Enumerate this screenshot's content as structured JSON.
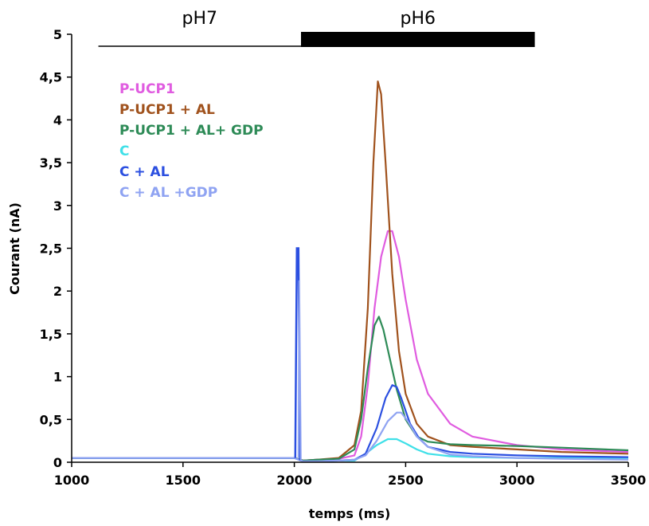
{
  "chart_data": {
    "type": "line",
    "xlabel": "temps (ms)",
    "ylabel": "Courant (nA)",
    "xlim": [
      1000,
      3500
    ],
    "ylim": [
      0,
      5
    ],
    "x_ticks": [
      {
        "value": 1000,
        "label": "1000"
      },
      {
        "value": 1500,
        "label": "1500"
      },
      {
        "value": 2000,
        "label": "2000"
      },
      {
        "value": 2500,
        "label": "2500"
      },
      {
        "value": 3000,
        "label": "3000"
      },
      {
        "value": 3500,
        "label": "3500"
      }
    ],
    "y_ticks": [
      {
        "value": 0,
        "label": "0"
      },
      {
        "value": 0.5,
        "label": "0,5"
      },
      {
        "value": 1,
        "label": "1"
      },
      {
        "value": 1.5,
        "label": "1,5"
      },
      {
        "value": 2,
        "label": "2"
      },
      {
        "value": 2.5,
        "label": "2,5"
      },
      {
        "value": 3,
        "label": "3"
      },
      {
        "value": 3.5,
        "label": "3,5"
      },
      {
        "value": 4,
        "label": "4"
      },
      {
        "value": 4.5,
        "label": "4,5"
      },
      {
        "value": 5,
        "label": "5"
      }
    ],
    "phases": [
      {
        "label": "pH7",
        "x_start": 1120,
        "x_end": 2030,
        "style": "thin"
      },
      {
        "label": "pH6",
        "x_start": 2030,
        "x_end": 3080,
        "style": "thick"
      }
    ],
    "legend_position": "top-left",
    "series": [
      {
        "name": "P-UCP1",
        "color": "#e05ce0",
        "x": [
          1000,
          1800,
          2000,
          2040,
          2100,
          2200,
          2270,
          2300,
          2330,
          2360,
          2390,
          2420,
          2440,
          2470,
          2500,
          2550,
          2600,
          2700,
          2800,
          3000,
          3200,
          3500
        ],
        "y": [
          0.05,
          0.05,
          0.05,
          0.02,
          0.03,
          0.04,
          0.08,
          0.3,
          0.9,
          1.8,
          2.4,
          2.7,
          2.7,
          2.4,
          1.9,
          1.2,
          0.8,
          0.45,
          0.3,
          0.2,
          0.15,
          0.12
        ]
      },
      {
        "name": "P-UCP1 + AL",
        "color": "#a0521d",
        "x": [
          1000,
          1800,
          2000,
          2040,
          2100,
          2200,
          2270,
          2300,
          2330,
          2355,
          2375,
          2390,
          2410,
          2440,
          2470,
          2500,
          2550,
          2600,
          2700,
          2800,
          3000,
          3200,
          3500
        ],
        "y": [
          0.05,
          0.05,
          0.05,
          0.02,
          0.03,
          0.05,
          0.2,
          0.6,
          1.8,
          3.5,
          4.45,
          4.3,
          3.5,
          2.2,
          1.3,
          0.8,
          0.45,
          0.3,
          0.2,
          0.18,
          0.15,
          0.12,
          0.1
        ]
      },
      {
        "name": "P-UCP1 + AL+ GDP",
        "color": "#2e8b57",
        "x": [
          1000,
          1800,
          2000,
          2040,
          2100,
          2200,
          2270,
          2300,
          2330,
          2360,
          2380,
          2400,
          2430,
          2460,
          2500,
          2550,
          2600,
          2700,
          2800,
          3000,
          3200,
          3500
        ],
        "y": [
          0.05,
          0.05,
          0.05,
          0.02,
          0.03,
          0.04,
          0.15,
          0.5,
          1.1,
          1.6,
          1.7,
          1.55,
          1.2,
          0.85,
          0.5,
          0.3,
          0.24,
          0.21,
          0.2,
          0.19,
          0.17,
          0.14
        ]
      },
      {
        "name": "C",
        "color": "#40e0e8",
        "x": [
          1000,
          1800,
          2000,
          2040,
          2100,
          2200,
          2270,
          2320,
          2370,
          2420,
          2460,
          2500,
          2550,
          2600,
          2700,
          2800,
          3000,
          3200,
          3500
        ],
        "y": [
          0.05,
          0.05,
          0.05,
          0.01,
          0.01,
          0.02,
          0.02,
          0.1,
          0.2,
          0.27,
          0.27,
          0.22,
          0.15,
          0.1,
          0.07,
          0.06,
          0.05,
          0.05,
          0.05
        ]
      },
      {
        "name": "C + AL",
        "color": "#2b4fe0",
        "x": [
          1000,
          1800,
          2000,
          2040,
          2100,
          2200,
          2270,
          2320,
          2370,
          2410,
          2440,
          2460,
          2480,
          2520,
          2560,
          2600,
          2700,
          2800,
          3000,
          3200,
          3500
        ],
        "y": [
          0.05,
          0.05,
          0.05,
          0.01,
          0.01,
          0.02,
          0.03,
          0.1,
          0.4,
          0.75,
          0.9,
          0.88,
          0.75,
          0.45,
          0.28,
          0.18,
          0.12,
          0.1,
          0.08,
          0.07,
          0.06
        ]
      },
      {
        "name": "C + AL +GDP",
        "color": "#8fa3f2",
        "x": [
          1000,
          1800,
          2000,
          2040,
          2100,
          2200,
          2270,
          2320,
          2370,
          2420,
          2460,
          2480,
          2510,
          2550,
          2600,
          2700,
          2800,
          3000,
          3200,
          3500
        ],
        "y": [
          0.05,
          0.05,
          0.05,
          0.01,
          0.01,
          0.02,
          0.03,
          0.08,
          0.25,
          0.48,
          0.58,
          0.58,
          0.48,
          0.3,
          0.18,
          0.09,
          0.07,
          0.05,
          0.04,
          0.03
        ]
      }
    ],
    "spike": {
      "x": 2015,
      "y": 2.5,
      "color": "#2b4fe0"
    }
  }
}
